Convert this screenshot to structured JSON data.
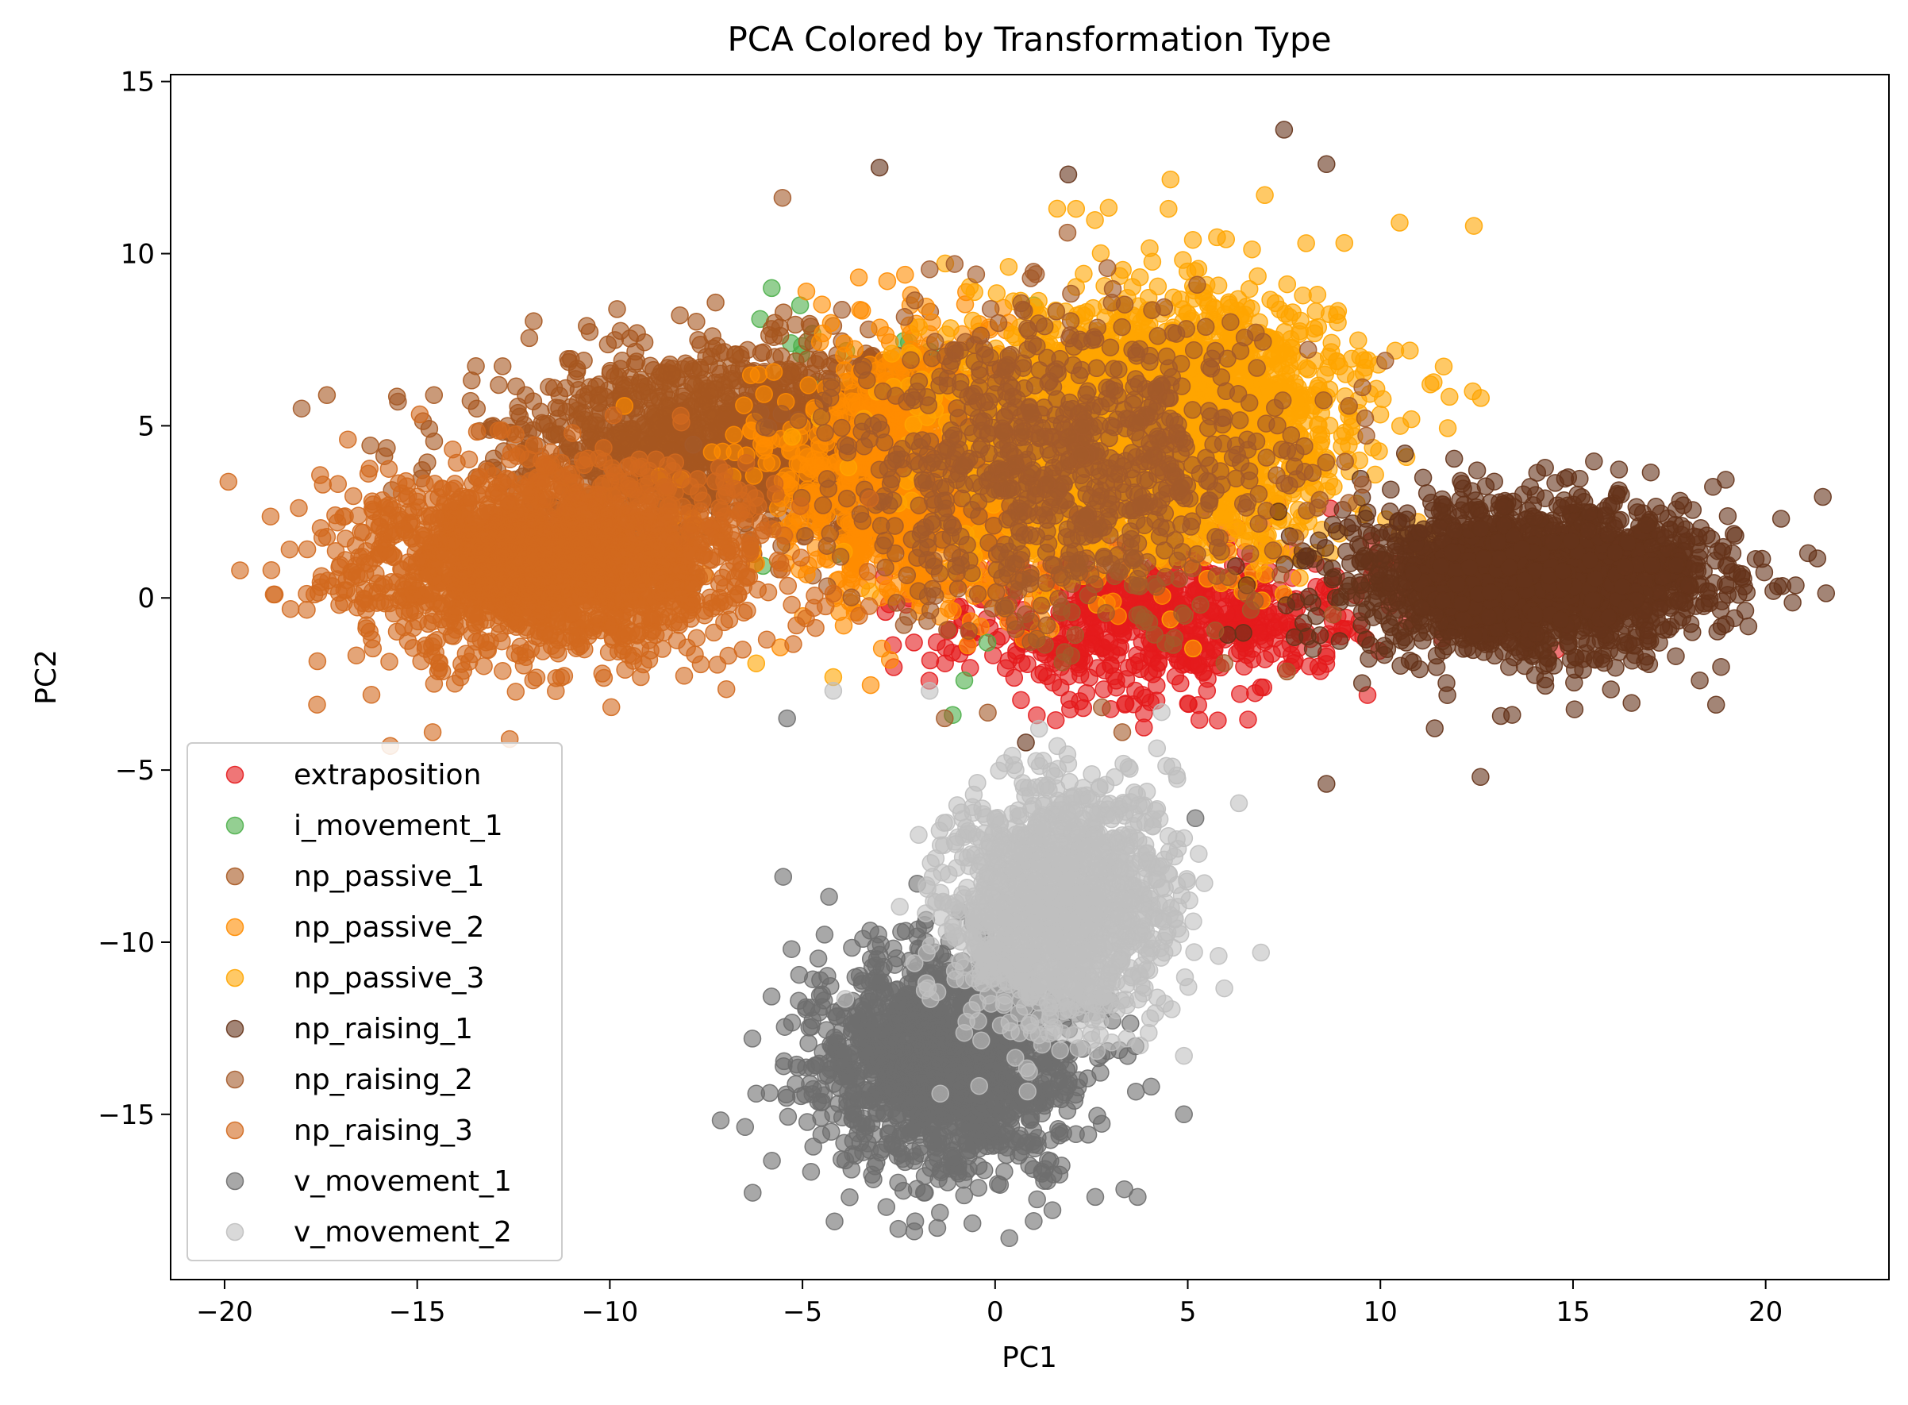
{
  "chart_data": {
    "type": "scatter",
    "title": "PCA Colored by Transformation Type",
    "xlabel": "PC1",
    "ylabel": "PC2",
    "xlim": [
      -21.4,
      23.2
    ],
    "ylim": [
      -19.8,
      15.2
    ],
    "x_ticks": [
      -20,
      -15,
      -10,
      -5,
      0,
      5,
      10,
      15,
      20
    ],
    "x_tick_labels": [
      "−20",
      "−15",
      "−10",
      "−5",
      "0",
      "5",
      "10",
      "15",
      "20"
    ],
    "y_ticks": [
      -15,
      -10,
      -5,
      0,
      5,
      10,
      15
    ],
    "y_tick_labels": [
      "−15",
      "−10",
      "−5",
      "0",
      "5",
      "10",
      "15"
    ],
    "grid": false,
    "legend_position": "lower-left",
    "marker_alpha": 0.6,
    "series": [
      {
        "name": "extraposition",
        "color": "#e41a1c",
        "center": [
          4.0,
          -0.6
        ],
        "spread": [
          2.6,
          1.1
        ],
        "n": 700,
        "points": [
          [
            2.2,
            -3.0
          ],
          [
            1.7,
            -2.6
          ],
          [
            8.7,
            2.6
          ],
          [
            -1.3,
            -1.9
          ],
          [
            5.5,
            -2.7
          ],
          [
            3.9,
            -2.9
          ]
        ]
      },
      {
        "name": "i_movement_1",
        "color": "#4daf4a",
        "center": [
          -3.5,
          5.5
        ],
        "spread": [
          1.5,
          1.5
        ],
        "n": 45,
        "points": [
          [
            -5.8,
            9.0
          ],
          [
            -6.1,
            8.1
          ],
          [
            -5.3,
            7.4
          ],
          [
            -0.8,
            -2.4
          ],
          [
            -0.2,
            -1.3
          ],
          [
            -1.1,
            -3.4
          ],
          [
            1.0,
            8.5
          ]
        ]
      },
      {
        "name": "np_passive_1",
        "color": "#a6561f",
        "center": [
          -6.5,
          4.6
        ],
        "spread": [
          3.0,
          1.3
        ],
        "n": 1600,
        "points": [
          [
            -10.6,
            7.9
          ],
          [
            -4.2,
            7.9
          ],
          [
            -7.5,
            7.0
          ]
        ]
      },
      {
        "name": "np_passive_2",
        "color": "#ff8c00",
        "center": [
          -1.3,
          3.6
        ],
        "spread": [
          2.1,
          1.8
        ],
        "n": 1700,
        "points": [
          [
            -2.8,
            9.2
          ],
          [
            -2.2,
            8.5
          ],
          [
            -4.9,
            8.9
          ]
        ]
      },
      {
        "name": "np_passive_3",
        "color": "#ffa500",
        "center": [
          4.2,
          5.0
        ],
        "spread": [
          2.4,
          1.9
        ],
        "n": 2400,
        "points": [
          [
            10.5,
            10.9
          ],
          [
            7.0,
            11.7
          ],
          [
            2.1,
            11.3
          ],
          [
            4.5,
            11.3
          ],
          [
            11.3,
            6.2
          ],
          [
            12.4,
            6.0
          ],
          [
            -4.2,
            -2.3
          ],
          [
            -3.4,
            5.2
          ],
          [
            -6.2,
            -1.9
          ]
        ]
      },
      {
        "name": "np_raising_1",
        "color": "#65331a",
        "center": [
          14.0,
          0.6
        ],
        "spread": [
          2.3,
          1.1
        ],
        "n": 2000,
        "points": [
          [
            21.1,
            1.3
          ],
          [
            20.4,
            2.3
          ],
          [
            20.2,
            0.2
          ],
          [
            12.6,
            -5.2
          ],
          [
            8.6,
            -5.4
          ],
          [
            7.5,
            13.6
          ],
          [
            8.6,
            12.6
          ],
          [
            -3.0,
            12.5
          ],
          [
            1.9,
            12.3
          ],
          [
            0.8,
            -4.2
          ]
        ]
      },
      {
        "name": "np_raising_2",
        "color": "#a45a2a",
        "center": [
          1.8,
          3.8
        ],
        "spread": [
          3.0,
          2.3
        ],
        "n": 900,
        "points": [
          [
            -18.0,
            5.5
          ],
          [
            -15.5,
            5.7
          ],
          [
            3.3,
            -3.9
          ]
        ]
      },
      {
        "name": "np_raising_3",
        "color": "#d2691e",
        "center": [
          -11.5,
          1.1
        ],
        "spread": [
          2.6,
          1.3
        ],
        "n": 2000,
        "points": [
          [
            -19.6,
            0.8
          ],
          [
            -18.7,
            0.1
          ],
          [
            -17.6,
            -3.1
          ],
          [
            -16.8,
            4.6
          ],
          [
            -15.7,
            -4.3
          ],
          [
            -14.6,
            -3.9
          ],
          [
            -12.6,
            -4.1
          ]
        ]
      },
      {
        "name": "v_movement_1",
        "color": "#6e6e6e",
        "center": [
          -1.3,
          -13.5
        ],
        "spread": [
          1.7,
          1.6
        ],
        "n": 1500,
        "points": [
          [
            -5.4,
            -3.5
          ],
          [
            -5.5,
            -8.1
          ],
          [
            -6.3,
            -12.8
          ],
          [
            -6.2,
            -14.4
          ],
          [
            -2.1,
            -18.4
          ],
          [
            -1.5,
            -18.3
          ],
          [
            1.0,
            -18.1
          ],
          [
            3.7,
            -17.4
          ],
          [
            2.6,
            -17.4
          ],
          [
            5.2,
            -6.4
          ],
          [
            4.9,
            -15.0
          ]
        ]
      },
      {
        "name": "v_movement_2",
        "color": "#bfbfbf",
        "center": [
          1.7,
          -8.8
        ],
        "spread": [
          1.4,
          1.7
        ],
        "n": 1500,
        "points": [
          [
            -4.2,
            -2.7
          ],
          [
            -1.7,
            -2.7
          ],
          [
            5.8,
            -10.4
          ],
          [
            6.9,
            -10.3
          ],
          [
            4.9,
            -13.3
          ],
          [
            4.6,
            -4.9
          ]
        ]
      }
    ]
  }
}
